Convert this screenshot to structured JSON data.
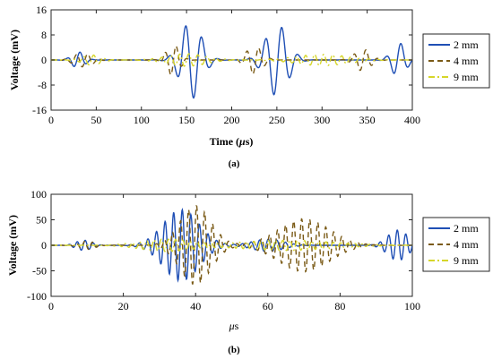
{
  "chart_data": [
    {
      "type": "line",
      "panel": "(a)",
      "xlabel_prefix": "Time (",
      "xlabel_unit_greek": "μ",
      "xlabel_suffix": "s)",
      "ylabel": "Voltage (mV)",
      "xlim": [
        0,
        400
      ],
      "ylim": [
        -16,
        16
      ],
      "xticks": [
        0,
        50,
        100,
        150,
        200,
        250,
        300,
        350,
        400
      ],
      "yticks": [
        -16,
        -8,
        0,
        8,
        16
      ],
      "grid": false,
      "legend_position": "right",
      "series": [
        {
          "name": "2 mm",
          "color": "#1f4fb5",
          "style": "solid",
          "envelope": [
            {
              "center": 30,
              "width": 10,
              "amp": 2.6,
              "freq": 0.07
            },
            {
              "center": 155,
              "width": 16,
              "amp": 12.5,
              "freq": 0.055,
              "phase": 0.4
            },
            {
              "center": 250,
              "width": 17,
              "amp": 11.5,
              "freq": 0.055,
              "phase": 1.2
            },
            {
              "center": 385,
              "width": 11,
              "amp": 5.5,
              "freq": 0.06
            }
          ]
        },
        {
          "name": "4 mm",
          "color": "#7a5a16",
          "style": "dashed",
          "envelope": [
            {
              "center": 35,
              "width": 14,
              "amp": 2.2,
              "freq": 0.08
            },
            {
              "center": 135,
              "width": 10,
              "amp": 5.0,
              "freq": 0.08,
              "phase": 1.0
            },
            {
              "center": 225,
              "width": 12,
              "amp": 4.5,
              "freq": 0.075
            },
            {
              "center": 345,
              "width": 12,
              "amp": 3.5,
              "freq": 0.075,
              "phase": 0.6
            }
          ]
        },
        {
          "name": "9 mm",
          "color": "#d6d62a",
          "style": "dashdot",
          "envelope": [
            {
              "center": 45,
              "width": 14,
              "amp": 1.6,
              "freq": 0.09
            },
            {
              "center": 150,
              "width": 30,
              "amp": 2.0,
              "freq": 0.1
            },
            {
              "center": 300,
              "width": 40,
              "amp": 1.8,
              "freq": 0.1,
              "phase": 0.4
            }
          ]
        }
      ]
    },
    {
      "type": "line",
      "panel": "(b)",
      "xlabel_prefix": "",
      "xlabel_unit_greek": "μ",
      "xlabel_suffix": "s",
      "ylabel": "Voltage (mV)",
      "xlim": [
        0,
        100
      ],
      "ylim": [
        -100,
        100
      ],
      "xticks": [
        0,
        20,
        40,
        60,
        80,
        100
      ],
      "yticks": [
        -100,
        -50,
        0,
        50,
        100
      ],
      "grid": false,
      "legend_position": "right",
      "series": [
        {
          "name": "2 mm",
          "color": "#1f4fb5",
          "style": "solid",
          "envelope": [
            {
              "center": 9,
              "width": 3,
              "amp": 10,
              "freq": 0.45
            },
            {
              "center": 36,
              "width": 7,
              "amp": 70,
              "freq": 0.42
            },
            {
              "center": 60,
              "width": 6,
              "amp": 12,
              "freq": 0.42
            },
            {
              "center": 96,
              "width": 4,
              "amp": 30,
              "freq": 0.42
            }
          ]
        },
        {
          "name": "4 mm",
          "color": "#7a5a16",
          "style": "dashed",
          "envelope": [
            {
              "center": 10,
              "width": 3,
              "amp": 8,
              "freq": 0.45,
              "phase": 0.5
            },
            {
              "center": 40,
              "width": 6,
              "amp": 78,
              "freq": 0.45,
              "phase": 0.8
            },
            {
              "center": 70,
              "width": 10,
              "amp": 52,
              "freq": 0.45,
              "phase": 0.2
            }
          ]
        },
        {
          "name": "9 mm",
          "color": "#d6d62a",
          "style": "dashdot",
          "envelope": [
            {
              "center": 32,
              "width": 10,
              "amp": 12,
              "freq": 0.5
            },
            {
              "center": 65,
              "width": 18,
              "amp": 10,
              "freq": 0.5,
              "phase": 1.1
            }
          ]
        }
      ]
    }
  ]
}
